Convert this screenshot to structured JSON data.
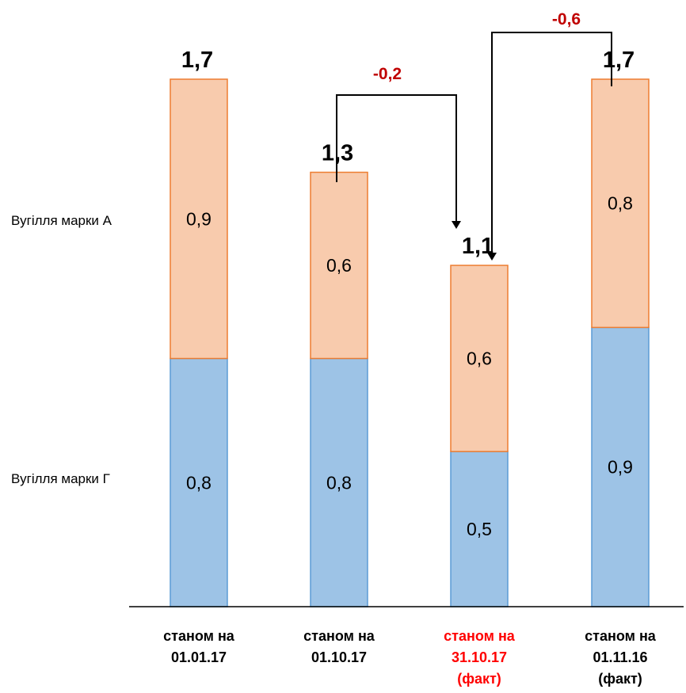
{
  "chart_data": {
    "type": "bar",
    "stacked": true,
    "categories": [
      {
        "lines": [
          "станом на",
          "01.01.17"
        ],
        "highlight": false
      },
      {
        "lines": [
          "станом на",
          "01.10.17"
        ],
        "highlight": false
      },
      {
        "lines": [
          "станом на",
          "31.10.17",
          "(факт)"
        ],
        "highlight": true
      },
      {
        "lines": [
          "станом на",
          "01.11.16",
          "(факт)"
        ],
        "highlight": false
      }
    ],
    "series": [
      {
        "name": "Вугілля  марки Г",
        "color": "#9dc3e6",
        "stroke": "#5b9bd5",
        "values": [
          0.8,
          0.8,
          0.5,
          0.9
        ],
        "labels": [
          "0,8",
          "0,8",
          "0,5",
          "0,9"
        ]
      },
      {
        "name": "Вугілля марки А",
        "color": "#f8cbad",
        "stroke": "#ed7d31",
        "values": [
          0.9,
          0.6,
          0.6,
          0.8
        ],
        "labels": [
          "0,9",
          "0,6",
          "0,6",
          "0,8"
        ]
      }
    ],
    "totals": [
      1.7,
      1.3,
      1.1,
      1.7
    ],
    "total_labels": [
      "1,7",
      "1,3",
      "1,1",
      "1,7"
    ],
    "annotations": [
      {
        "from": 1,
        "to": 2,
        "label": "-0,2"
      },
      {
        "from": 3,
        "to": 2,
        "label": "-0,6"
      }
    ],
    "highlight_color": "#ff0000",
    "delta_color": "#c00000",
    "ylim": [
      0,
      1.7
    ],
    "grid": false,
    "legend": "left"
  }
}
